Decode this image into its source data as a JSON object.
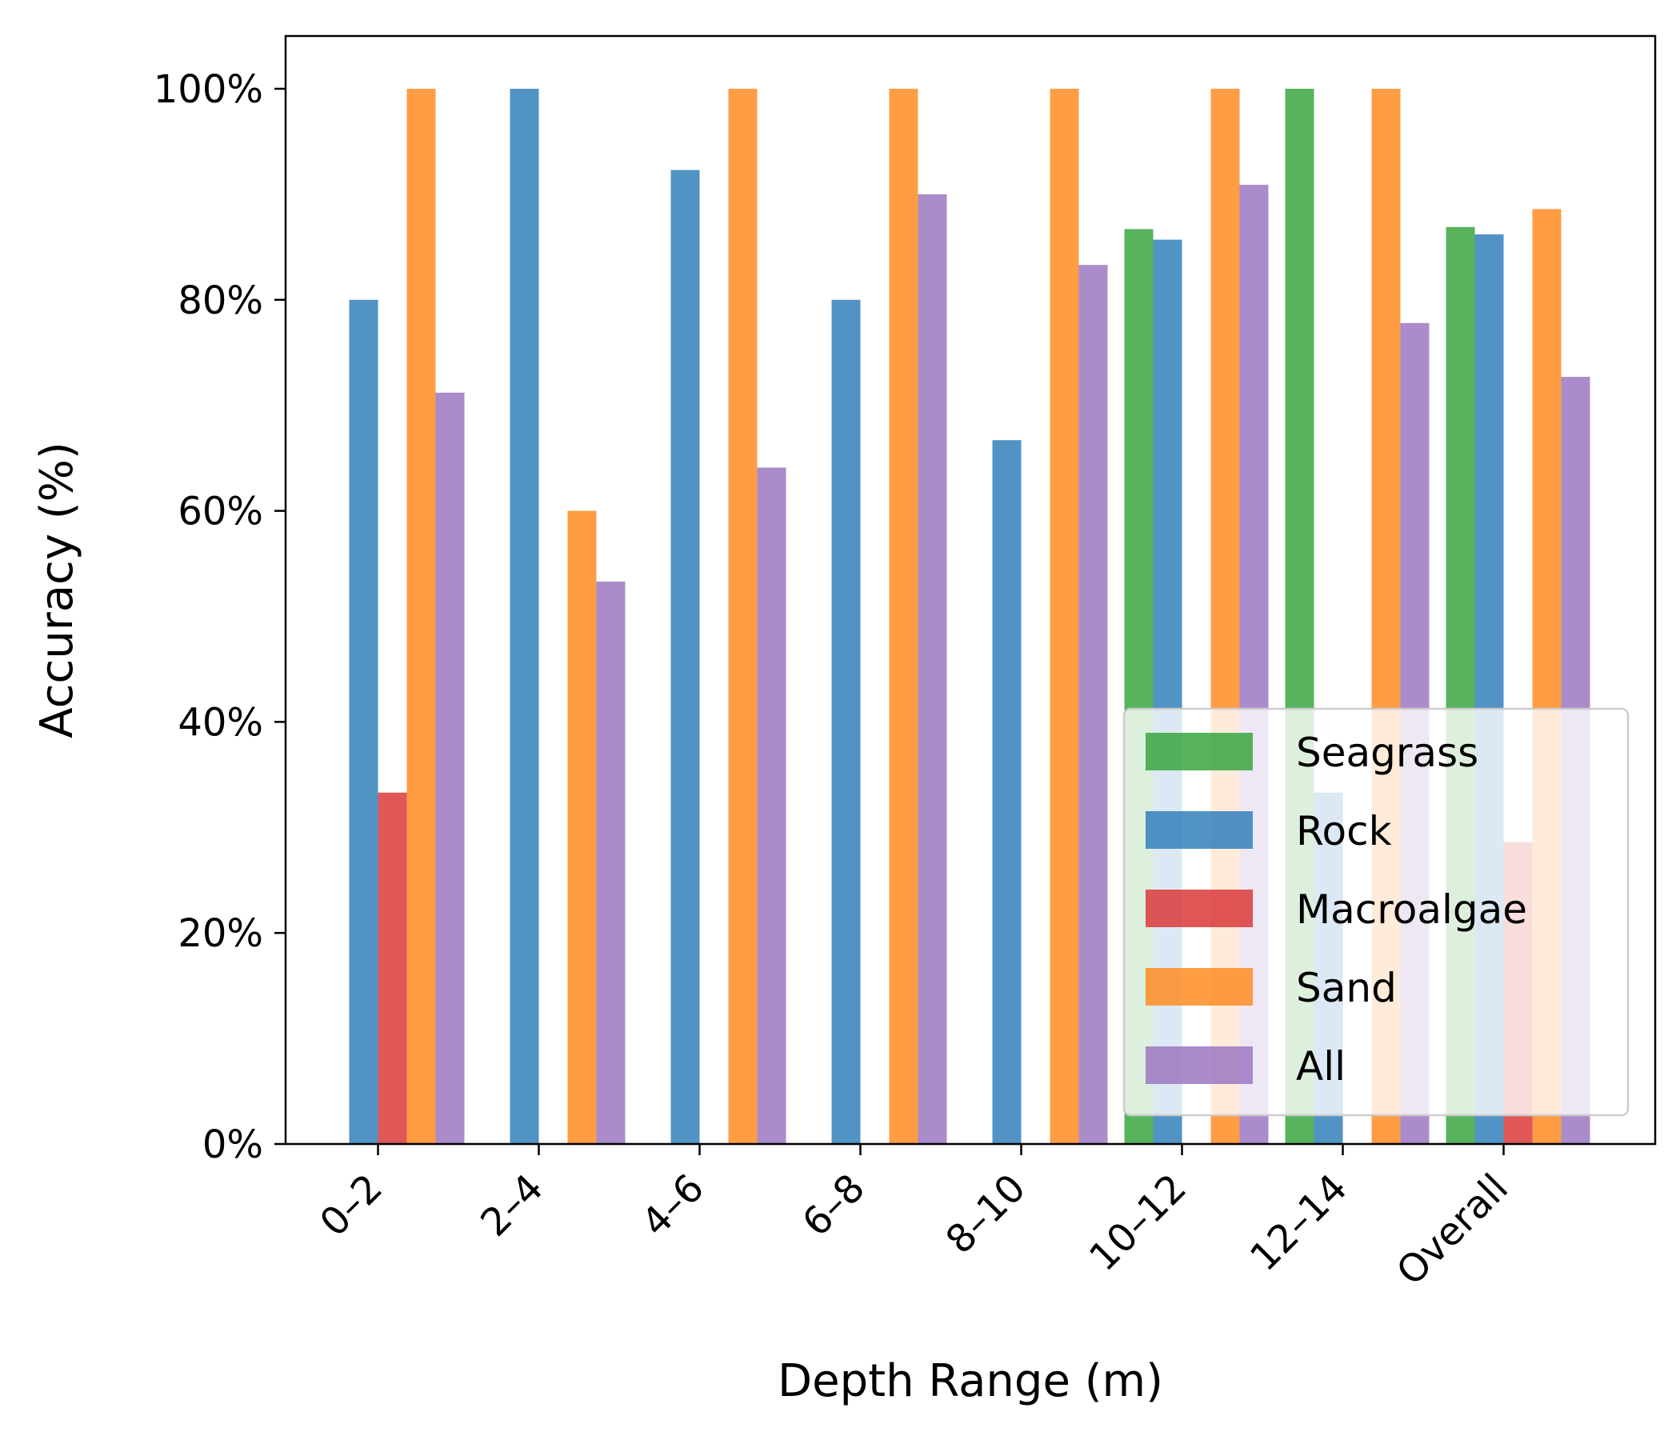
{
  "chart_data": {
    "type": "bar",
    "title": "",
    "xlabel": "Depth Range (m)",
    "ylabel": "Accuracy (%)",
    "ylim": [
      0,
      105
    ],
    "yticks": [
      0,
      20,
      40,
      60,
      80,
      100
    ],
    "ytick_labels": [
      "0%",
      "20%",
      "40%",
      "60%",
      "80%",
      "100%"
    ],
    "categories": [
      "0–2",
      "2–4",
      "4–6",
      "6–8",
      "8–10",
      "10–12",
      "12–14",
      "Overall"
    ],
    "series": [
      {
        "name": "Seagrass",
        "color": "#3aa640",
        "values": [
          null,
          null,
          null,
          null,
          null,
          86.7,
          100,
          86.9
        ]
      },
      {
        "name": "Rock",
        "color": "#3380bb",
        "values": [
          80,
          100,
          92.3,
          80,
          66.7,
          85.7,
          33.3,
          86.2
        ]
      },
      {
        "name": "Macroalgae",
        "color": "#d93a3a",
        "values": [
          33.3,
          null,
          null,
          null,
          null,
          null,
          null,
          28.6
        ]
      },
      {
        "name": "Sand",
        "color": "#ff8c25",
        "values": [
          100,
          60,
          100,
          100,
          100,
          100,
          100,
          88.6
        ]
      },
      {
        "name": "All",
        "color": "#9c78c1",
        "values": [
          71.2,
          53.3,
          64.1,
          90,
          83.3,
          90.9,
          77.8,
          72.7
        ]
      }
    ],
    "legend_position": "lower-right",
    "grid": false
  }
}
